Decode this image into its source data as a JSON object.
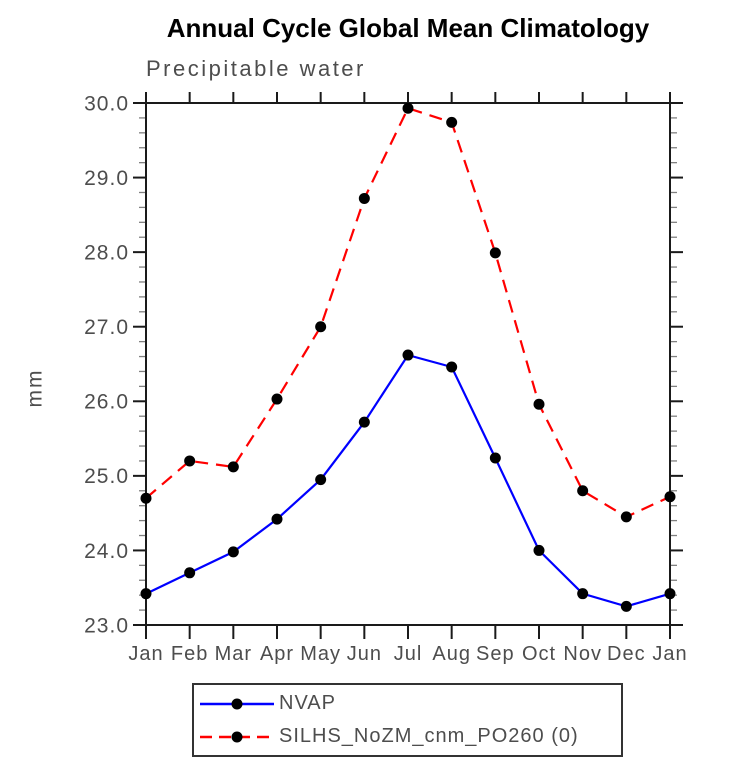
{
  "page": {
    "background": "#ffffff"
  },
  "chart_data": {
    "type": "line",
    "title": "Annual Cycle Global Mean Climatology",
    "subtitle": "Precipitable water",
    "ylabel": "mm",
    "xlabel": "",
    "x_tick_labels": [
      "Jan",
      "Feb",
      "Mar",
      "Apr",
      "May",
      "Jun",
      "Jul",
      "Aug",
      "Sep",
      "Oct",
      "Nov",
      "Dec",
      "Jan"
    ],
    "ylim": [
      23.0,
      30.0
    ],
    "y_major_tick_step": 1.0,
    "y_minor_tick_step": 0.2,
    "y_tick_labels": [
      "30.0",
      "29.0",
      "28.0",
      "27.0",
      "26.0",
      "25.0",
      "24.0",
      "23.0"
    ],
    "grid": false,
    "legend_position": "bottom",
    "series": [
      {
        "name": "NVAP",
        "color": "#0000ff",
        "line_style": "solid",
        "marker": "filled-circle",
        "marker_color": "#000000",
        "values": [
          23.42,
          23.7,
          23.98,
          24.42,
          24.95,
          25.72,
          26.62,
          26.46,
          25.24,
          24.0,
          23.42,
          23.25,
          23.42
        ]
      },
      {
        "name": "SILHS_NoZM_cnm_PO260 (0)",
        "color": "#ff0000",
        "line_style": "dashed",
        "marker": "filled-circle",
        "marker_color": "#000000",
        "values": [
          24.7,
          25.2,
          25.12,
          26.03,
          27.0,
          28.72,
          29.93,
          29.74,
          27.99,
          25.96,
          24.8,
          24.45,
          24.72
        ]
      }
    ]
  },
  "colors": {
    "axis": "#1a1a1a",
    "minor_tick": "#808080",
    "label": "#4d4d4d",
    "title": "#000000"
  }
}
